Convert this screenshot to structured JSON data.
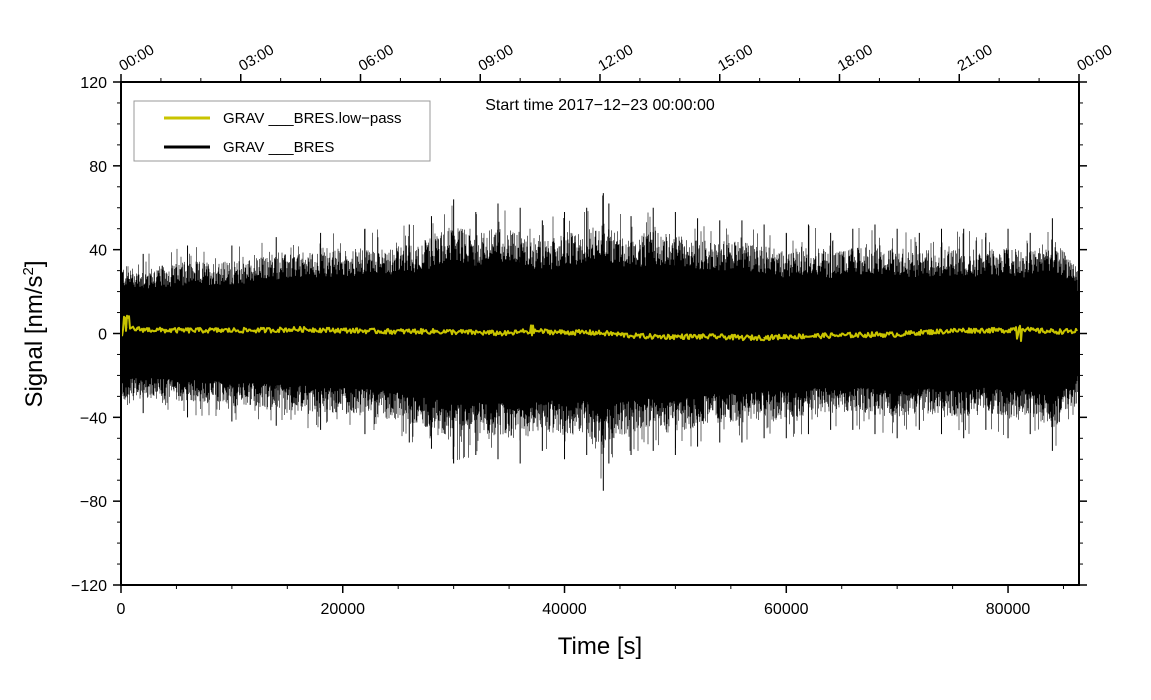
{
  "chart_data": {
    "type": "line",
    "title": "",
    "annotation": "Start time 2017−12−23 00:00:00",
    "xlabel": "Time [s]",
    "ylabel_main": "Signal [nm/s",
    "ylabel_sup": "2",
    "ylabel_end": "]",
    "xlim": [
      0,
      86400
    ],
    "ylim": [
      -120,
      120
    ],
    "x_ticks": [
      0,
      20000,
      40000,
      60000,
      80000
    ],
    "x_tick_labels": [
      "0",
      "20000",
      "40000",
      "60000",
      "80000"
    ],
    "y_ticks": [
      -120,
      -80,
      -40,
      0,
      40,
      80,
      120
    ],
    "y_tick_labels": [
      "−120",
      "−80",
      "−40",
      "0",
      "40",
      "80",
      "120"
    ],
    "top_axis": {
      "ticks": [
        0,
        10800,
        21600,
        32400,
        43200,
        54000,
        64800,
        75600,
        86400
      ],
      "labels": [
        "00:00",
        "03:00",
        "06:00",
        "09:00",
        "12:00",
        "15:00",
        "18:00",
        "21:00",
        "00:00"
      ]
    },
    "legend_position": "top-left",
    "series": [
      {
        "name": "GRAV ___BRES.low−pass",
        "color": "#c9c400",
        "kind": "low-pass trace",
        "x": [
          0,
          500,
          1500,
          4000,
          8000,
          12000,
          16000,
          20000,
          24000,
          28000,
          32000,
          35000,
          37000,
          38000,
          40000,
          42000,
          44000,
          46000,
          48000,
          50000,
          52000,
          54000,
          56000,
          58000,
          60000,
          64000,
          68000,
          70000,
          72000,
          74000,
          76000,
          78000,
          80000,
          81000,
          82000,
          84000,
          86400
        ],
        "values": [
          4,
          3,
          2,
          1.5,
          1.5,
          1.5,
          2,
          1.5,
          1,
          1,
          0.5,
          0,
          1.5,
          1,
          0.5,
          0.5,
          0,
          -1,
          -1.5,
          -1.5,
          -1.5,
          -1.5,
          -2,
          -2,
          -1.5,
          -1,
          -0.5,
          -0.5,
          0.5,
          1,
          1.5,
          1.5,
          1.5,
          3,
          1.5,
          1,
          1
        ]
      },
      {
        "name": "GRAV ___BRES",
        "color": "#000000",
        "kind": "raw trace envelope",
        "x": [
          0,
          2000,
          6000,
          10000,
          14000,
          18000,
          22000,
          26000,
          28000,
          30000,
          32000,
          34000,
          36000,
          38000,
          40000,
          42000,
          43500,
          44000,
          46000,
          48000,
          50000,
          52000,
          54000,
          56000,
          58000,
          60000,
          62000,
          64000,
          66000,
          68000,
          70000,
          72000,
          74000,
          76000,
          78000,
          80000,
          82000,
          84000,
          86400
        ],
        "upper": [
          40,
          38,
          42,
          42,
          46,
          48,
          50,
          52,
          56,
          64,
          58,
          62,
          60,
          54,
          58,
          60,
          67,
          62,
          56,
          60,
          58,
          55,
          54,
          54,
          52,
          48,
          52,
          48,
          50,
          52,
          50,
          48,
          50,
          50,
          48,
          50,
          48,
          55,
          40
        ],
        "lower": [
          -40,
          -38,
          -40,
          -42,
          -44,
          -46,
          -48,
          -52,
          -55,
          -62,
          -58,
          -60,
          -62,
          -56,
          -60,
          -58,
          -75,
          -62,
          -58,
          -56,
          -58,
          -54,
          -52,
          -52,
          -50,
          -50,
          -48,
          -46,
          -46,
          -48,
          -50,
          -46,
          -48,
          -50,
          -46,
          -50,
          -48,
          -56,
          -40
        ]
      }
    ]
  }
}
